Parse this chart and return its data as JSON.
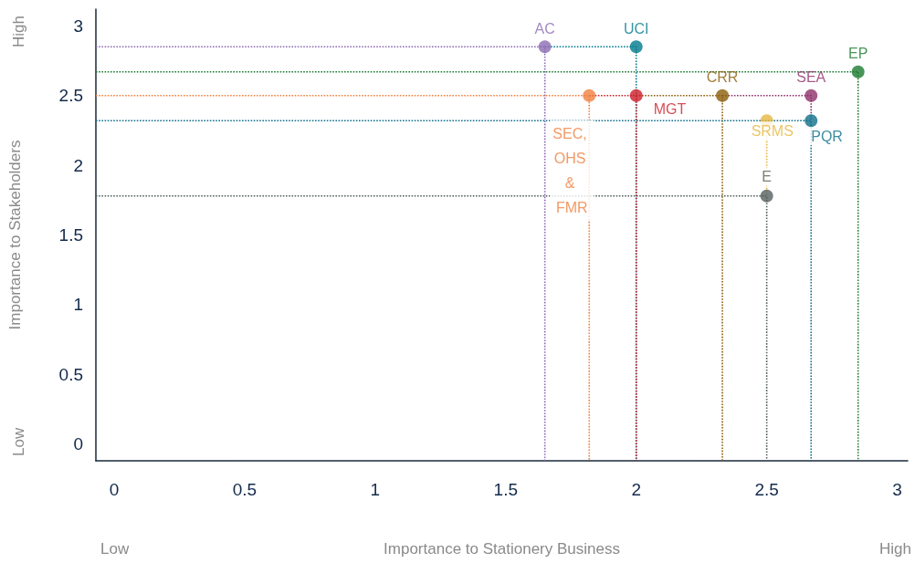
{
  "chart_data": {
    "type": "scatter",
    "xlabel": "Importance to Stationery Business",
    "ylabel": "Importance to Stakeholders",
    "annotations": [
      "Low",
      "High",
      "Low",
      "High"
    ],
    "xlim": [
      -0.07,
      3.04
    ],
    "ylim": [
      -0.12,
      3.12
    ],
    "xticks": [
      0,
      0.5,
      1,
      1.5,
      2,
      2.5,
      3
    ],
    "yticks": [
      0,
      0.5,
      1,
      1.5,
      2,
      2.5,
      3
    ],
    "grid": false,
    "legend": false,
    "marker": "circle",
    "series": [
      {
        "type": "line",
        "line_style": "dotted",
        "marker": "none",
        "color": "#8c6bb1",
        "x": [
          -0.07,
          1.65,
          1.65
        ],
        "values": [
          2.85,
          2.85,
          -0.12
        ]
      },
      {
        "type": "line",
        "line_style": "dotted",
        "marker": "none",
        "color": "#00798c",
        "x": [
          1.65,
          2,
          2
        ],
        "values": [
          2.85,
          2.85,
          -0.12
        ]
      },
      {
        "type": "line",
        "line_style": "dotted",
        "marker": "none",
        "color": "#1a7a30",
        "x": [
          -0.07,
          2.85,
          2.85
        ],
        "values": [
          2.67,
          2.67,
          -0.12
        ]
      },
      {
        "type": "line",
        "line_style": "dotted",
        "marker": "none",
        "color": "#8e2f6a",
        "x": [
          2.33,
          2.67,
          2.67
        ],
        "values": [
          2.5,
          2.5,
          2.32
        ]
      },
      {
        "type": "line",
        "line_style": "dotted",
        "marker": "none",
        "color": "#8b5e0a",
        "x": [
          2,
          2.33,
          2.33
        ],
        "values": [
          2.5,
          2.5,
          -0.12
        ]
      },
      {
        "type": "line",
        "line_style": "dotted",
        "marker": "none",
        "color": "#cc1f2a",
        "x": [
          1.82,
          2,
          2
        ],
        "values": [
          2.5,
          2.5,
          -0.12
        ]
      },
      {
        "type": "line",
        "line_style": "dotted",
        "marker": "none",
        "color": "#f08040",
        "x": [
          -0.07,
          1.82,
          1.82
        ],
        "values": [
          2.5,
          2.5,
          -0.12
        ]
      },
      {
        "type": "line",
        "line_style": "dotted",
        "marker": "none",
        "color": "#e6b740",
        "x": [
          2.5,
          2.5
        ],
        "values": [
          2.32,
          1.78
        ]
      },
      {
        "type": "line",
        "line_style": "dotted",
        "marker": "none",
        "color": "#0f6f8a",
        "x": [
          -0.07,
          2.67,
          2.67
        ],
        "values": [
          2.32,
          2.32,
          -0.12
        ]
      },
      {
        "type": "line",
        "line_style": "dotted",
        "marker": "none",
        "color": "#555f5f",
        "x": [
          -0.07,
          2.5,
          2.5
        ],
        "values": [
          1.78,
          1.78,
          -0.12
        ]
      },
      {
        "name": "AC",
        "color": "#8c6bb1",
        "x": [
          1.65
        ],
        "values": [
          2.85
        ]
      },
      {
        "name": "UCI",
        "color": "#00798c",
        "x": [
          2
        ],
        "values": [
          2.85
        ]
      },
      {
        "name": "EP",
        "color": "#1a7a30",
        "x": [
          2.85
        ],
        "values": [
          2.67
        ]
      },
      {
        "name": "SEA",
        "color": "#8e2f6a",
        "x": [
          2.67
        ],
        "values": [
          2.5
        ]
      },
      {
        "name": "CRR",
        "color": "#8b5e0a",
        "x": [
          2.33
        ],
        "values": [
          2.5
        ]
      },
      {
        "name": "MGT",
        "color": "#cc1f2a",
        "x": [
          2
        ],
        "values": [
          2.5
        ]
      },
      {
        "name": "SEC, OHS & FMR",
        "color": "#f08040",
        "x": [
          1.82
        ],
        "values": [
          2.5
        ]
      },
      {
        "name": "SRMS",
        "color": "#e6b740",
        "x": [
          2.5
        ],
        "values": [
          2.32
        ]
      },
      {
        "name": "PQR",
        "color": "#0f6f8a",
        "x": [
          2.67
        ],
        "values": [
          2.32
        ]
      },
      {
        "name": "E",
        "color": "#555f5f",
        "x": [
          2.5
        ],
        "values": [
          1.78
        ]
      }
    ]
  }
}
